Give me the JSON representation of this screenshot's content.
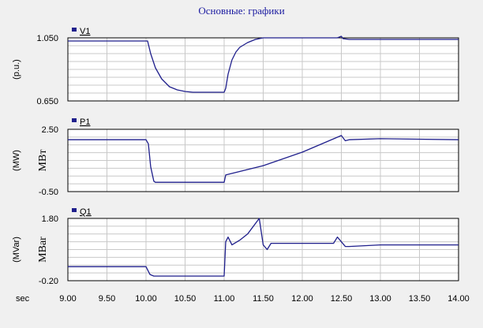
{
  "window": {
    "title": "Основные: графики"
  },
  "colors": {
    "trace": "#1f1f8c",
    "plot_bg": "#ffffff",
    "grid": "#c8c8c8",
    "frame": "#000000"
  },
  "x_axis": {
    "label": "sec",
    "range": [
      9.0,
      14.0
    ],
    "ticks": [
      "9.00",
      "9.50",
      "10.00",
      "10.50",
      "11.00",
      "11.50",
      "12.00",
      "12.50",
      "13.00",
      "13.50",
      "14.00"
    ]
  },
  "chart_data": [
    {
      "type": "line",
      "legend": "V1",
      "unit_left": "(p.u.)",
      "unit_right": "",
      "ylim": [
        0.65,
        1.05
      ],
      "y_tick_labels": [
        "1.050",
        "0.650"
      ],
      "grid": true,
      "series": [
        {
          "x": [
            9.0,
            10.02,
            10.06,
            10.12,
            10.2,
            10.3,
            10.4,
            10.5,
            10.6,
            10.8,
            11.0,
            11.02,
            11.05,
            11.1,
            11.15,
            11.2,
            11.3,
            11.4,
            11.5,
            12.0,
            12.45,
            12.5,
            12.52,
            12.6,
            14.0
          ],
          "y": [
            1.03,
            1.03,
            0.95,
            0.86,
            0.79,
            0.74,
            0.72,
            0.71,
            0.705,
            0.705,
            0.705,
            0.73,
            0.82,
            0.91,
            0.96,
            0.99,
            1.02,
            1.04,
            1.05,
            1.05,
            1.05,
            1.06,
            1.045,
            1.04,
            1.04
          ]
        }
      ]
    },
    {
      "type": "line",
      "legend": "P1",
      "unit_left": "(MW)",
      "unit_right": "МВт",
      "ylim": [
        -0.5,
        2.5
      ],
      "y_tick_labels": [
        "2.50",
        "-0.50"
      ],
      "grid": true,
      "series": [
        {
          "x": [
            9.0,
            10.0,
            10.03,
            10.06,
            10.1,
            10.12,
            10.5,
            11.0,
            11.02,
            11.5,
            12.0,
            12.5,
            12.55,
            12.6,
            13.0,
            14.0
          ],
          "y": [
            2.0,
            2.0,
            1.8,
            0.7,
            0.0,
            -0.05,
            -0.05,
            -0.05,
            0.3,
            0.75,
            1.4,
            2.2,
            1.95,
            2.0,
            2.05,
            2.0
          ]
        }
      ]
    },
    {
      "type": "line",
      "legend": "Q1",
      "unit_left": "(MVar)",
      "unit_right": "MBar",
      "ylim": [
        -0.2,
        1.8
      ],
      "y_tick_labels": [
        "1.80",
        "-0.20"
      ],
      "grid": true,
      "series": [
        {
          "x": [
            9.0,
            10.0,
            10.02,
            10.05,
            10.1,
            11.0,
            11.02,
            11.05,
            11.1,
            11.2,
            11.3,
            11.45,
            11.5,
            11.55,
            11.6,
            12.0,
            12.4,
            12.45,
            12.55,
            12.6,
            13.0,
            14.0
          ],
          "y": [
            0.25,
            0.25,
            0.15,
            0.0,
            -0.05,
            -0.05,
            1.05,
            1.2,
            0.95,
            1.1,
            1.3,
            1.8,
            0.95,
            0.8,
            1.0,
            1.0,
            1.0,
            1.2,
            0.9,
            0.9,
            0.95,
            0.95
          ]
        }
      ]
    }
  ]
}
